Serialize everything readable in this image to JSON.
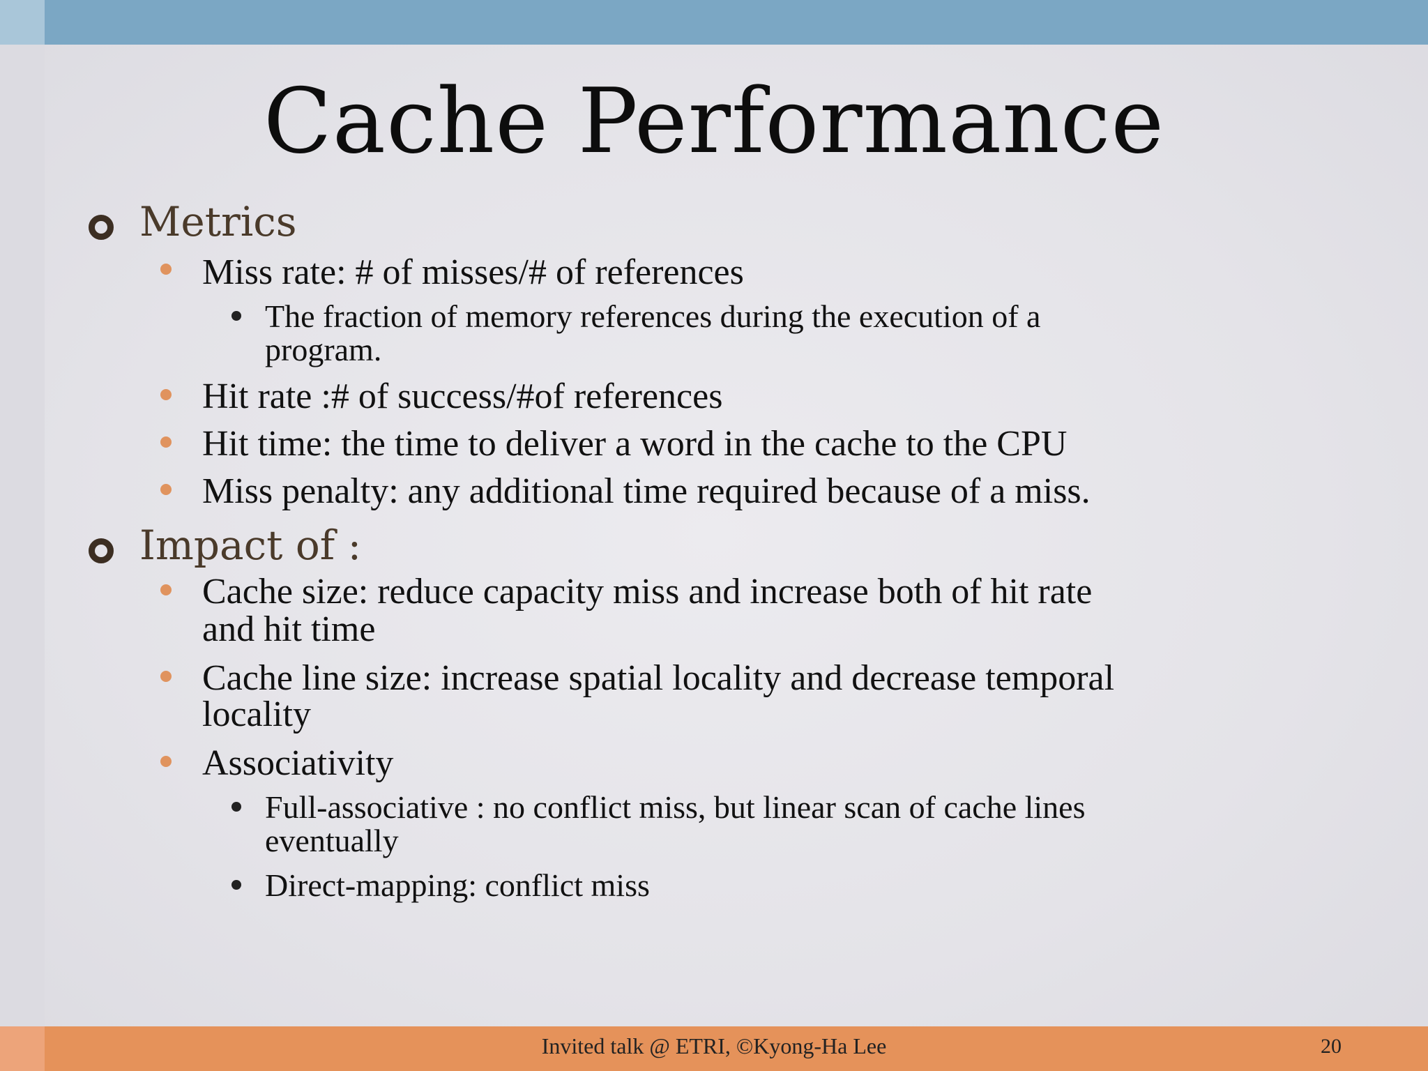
{
  "title": "Cache Performance",
  "footer": "Invited talk @ ETRI, ©Kyong-Ha Lee",
  "page_number": "20",
  "colors": {
    "top_bar": "#7ba7c4",
    "bottom_bar": "#e5925a",
    "level1_text": "#4a3a2a",
    "level2_bullet": "#e0935e"
  },
  "sections": [
    {
      "heading": "Metrics",
      "items": [
        {
          "text": "Miss rate: # of misses/# of references",
          "subitems": [
            {
              "lines": [
                "The fraction of memory references during the execution of a",
                "program."
              ]
            }
          ]
        },
        {
          "text": "Hit rate :# of success/#of references"
        },
        {
          "text": "Hit time: the time to deliver a word in the cache to the CPU"
        },
        {
          "text": "Miss penalty: any additional time required because of a miss."
        }
      ]
    },
    {
      "heading": "Impact of :",
      "items": [
        {
          "lines": [
            "Cache size: reduce capacity miss and increase both of hit rate",
            "and hit time"
          ]
        },
        {
          "lines": [
            "Cache line size: increase spatial locality and decrease temporal",
            "locality"
          ]
        },
        {
          "text": "Associativity",
          "subitems": [
            {
              "lines": [
                " Full-associative : no conflict miss, but linear scan of cache lines",
                "eventually"
              ]
            },
            {
              "lines": [
                "Direct-mapping: conflict miss"
              ]
            }
          ]
        }
      ]
    }
  ]
}
